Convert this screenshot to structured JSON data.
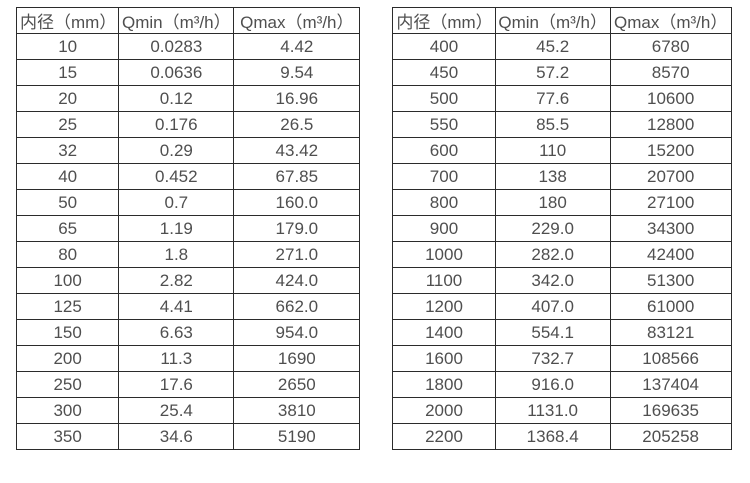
{
  "colors": {
    "background": "#ffffff",
    "text": "#4f4f4f",
    "border": "#2b2b2b"
  },
  "chart_data": [
    {
      "type": "table",
      "title": "",
      "columns": [
        "内径（mm）",
        "Qmin（m³/h）",
        "Qmax（m³/h）"
      ],
      "rows": [
        [
          "10",
          "0.0283",
          "4.42"
        ],
        [
          "15",
          "0.0636",
          "9.54"
        ],
        [
          "20",
          "0.12",
          "16.96"
        ],
        [
          "25",
          "0.176",
          "26.5"
        ],
        [
          "32",
          "0.29",
          "43.42"
        ],
        [
          "40",
          "0.452",
          "67.85"
        ],
        [
          "50",
          "0.7",
          "160.0"
        ],
        [
          "65",
          "1.19",
          "179.0"
        ],
        [
          "80",
          "1.8",
          "271.0"
        ],
        [
          "100",
          "2.82",
          "424.0"
        ],
        [
          "125",
          "4.41",
          "662.0"
        ],
        [
          "150",
          "6.63",
          "954.0"
        ],
        [
          "200",
          "11.3",
          "1690"
        ],
        [
          "250",
          "17.6",
          "2650"
        ],
        [
          "300",
          "25.4",
          "3810"
        ],
        [
          "350",
          "34.6",
          "5190"
        ]
      ]
    },
    {
      "type": "table",
      "title": "",
      "columns": [
        "内径（mm）",
        "Qmin（m³/h）",
        "Qmax（m³/h）"
      ],
      "rows": [
        [
          "400",
          "45.2",
          "6780"
        ],
        [
          "450",
          "57.2",
          "8570"
        ],
        [
          "500",
          "77.6",
          "10600"
        ],
        [
          "550",
          "85.5",
          "12800"
        ],
        [
          "600",
          "110",
          "15200"
        ],
        [
          "700",
          "138",
          "20700"
        ],
        [
          "800",
          "180",
          "27100"
        ],
        [
          "900",
          "229.0",
          "34300"
        ],
        [
          "1000",
          "282.0",
          "42400"
        ],
        [
          "1100",
          "342.0",
          "51300"
        ],
        [
          "1200",
          "407.0",
          "61000"
        ],
        [
          "1400",
          "554.1",
          "83121"
        ],
        [
          "1600",
          "732.7",
          "108566"
        ],
        [
          "1800",
          "916.0",
          "137404"
        ],
        [
          "2000",
          "1131.0",
          "169635"
        ],
        [
          "2200",
          "1368.4",
          "205258"
        ]
      ]
    }
  ]
}
